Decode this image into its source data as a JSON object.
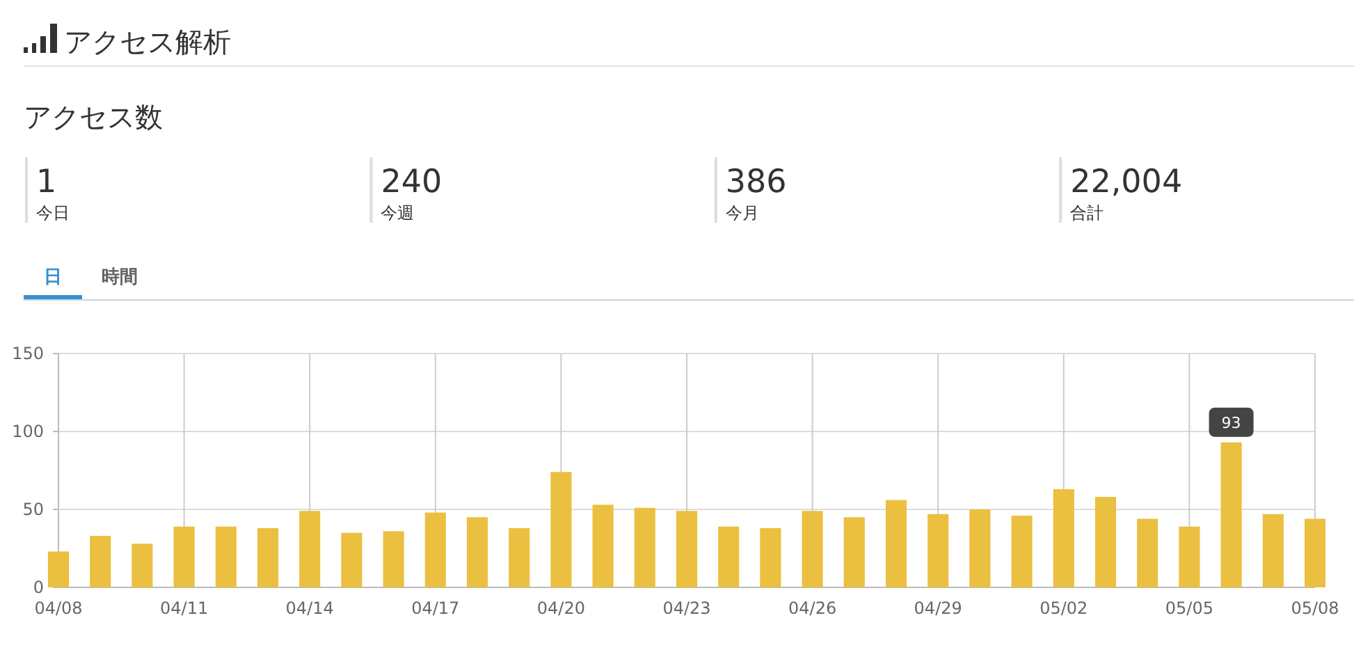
{
  "chart_data": [
    {
      "type": "other",
      "title": "アクセス解析",
      "subtitle": "アクセス数",
      "categories": [
        "今日",
        "今週",
        "今月",
        "合計"
      ],
      "values": [
        1,
        240,
        386,
        22004
      ],
      "value_labels": [
        "1",
        "240",
        "386",
        "22,004"
      ]
    },
    {
      "type": "bar",
      "annotations": [
        "日",
        "時間"
      ],
      "categories": [
        "04/08",
        null,
        null,
        "04/11",
        null,
        null,
        "04/14",
        null,
        null,
        "04/17",
        null,
        null,
        "04/20",
        null,
        null,
        "04/23",
        null,
        null,
        "04/26",
        null,
        null,
        "04/29",
        null,
        null,
        "05/02",
        null,
        null,
        "05/05",
        null,
        null,
        "05/08"
      ],
      "values": [
        23,
        33,
        28,
        39,
        39,
        38,
        49,
        35,
        36,
        48,
        45,
        38,
        74,
        53,
        51,
        49,
        39,
        38,
        49,
        45,
        56,
        47,
        50,
        46,
        63,
        58,
        44,
        39,
        93,
        47,
        44
      ],
      "value_labels": [
        null,
        null,
        null,
        null,
        null,
        null,
        null,
        null,
        null,
        null,
        null,
        null,
        null,
        null,
        null,
        null,
        null,
        null,
        null,
        null,
        null,
        null,
        null,
        null,
        null,
        null,
        null,
        null,
        "93",
        null,
        null
      ],
      "color": "#ebbf3f",
      "ylim": [
        0,
        150
      ],
      "yticks": [
        0,
        50,
        100,
        150
      ],
      "grid": true
    }
  ]
}
